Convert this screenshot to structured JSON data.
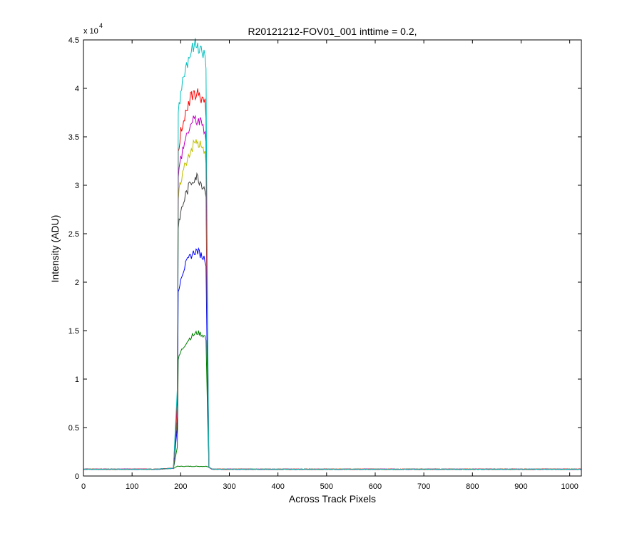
{
  "chart_data": {
    "type": "line",
    "title": "R20121212-FOV01_001 inttime = 0.2,",
    "xlabel": "Across Track Pixels",
    "ylabel": "Intensity (ADU)",
    "y_multiplier": "x 10",
    "y_multiplier_exponent": "4",
    "xlim": [
      0,
      1024
    ],
    "ylim": [
      0,
      45000
    ],
    "xticks": [
      0,
      100,
      200,
      300,
      400,
      500,
      600,
      700,
      800,
      900,
      1000
    ],
    "xtick_labels": [
      "0",
      "100",
      "200",
      "300",
      "400",
      "500",
      "600",
      "700",
      "800",
      "900",
      "1000"
    ],
    "yticks": [
      0,
      5000,
      10000,
      15000,
      20000,
      25000,
      30000,
      35000,
      40000,
      45000
    ],
    "ytick_labels": [
      "0",
      "0.5",
      "1",
      "1.5",
      "2",
      "2.5",
      "3",
      "3.5",
      "4",
      "4.5"
    ],
    "grid": false,
    "legend": "none",
    "baseline": 700,
    "x": [
      0,
      50,
      100,
      150,
      185,
      193,
      195,
      200,
      210,
      220,
      230,
      235,
      240,
      250,
      252,
      255,
      258,
      265,
      300,
      400,
      500,
      600,
      700,
      800,
      900,
      1024
    ],
    "series": [
      {
        "color": "#008000",
        "values": [
          700,
          700,
          700,
          700,
          800,
          1000,
          1000,
          1000,
          1000,
          1000,
          1000,
          1000,
          1000,
          1000,
          1000,
          1000,
          900,
          700,
          700,
          700,
          700,
          700,
          700,
          700,
          700,
          700
        ]
      },
      {
        "color": "#008000",
        "values": [
          700,
          700,
          700,
          700,
          800,
          3000,
          12000,
          12800,
          13700,
          14300,
          14700,
          14800,
          14700,
          14400,
          14000,
          7000,
          900,
          700,
          700,
          700,
          700,
          700,
          700,
          700,
          700,
          700
        ]
      },
      {
        "color": "#0000ff",
        "values": [
          700,
          700,
          700,
          700,
          800,
          5000,
          19000,
          20500,
          21800,
          22700,
          23200,
          23200,
          22900,
          22400,
          21700,
          10000,
          900,
          700,
          700,
          700,
          700,
          700,
          700,
          700,
          700,
          700
        ]
      },
      {
        "color": "#3f3f3f",
        "values": [
          700,
          700,
          700,
          700,
          800,
          6000,
          25500,
          27200,
          29000,
          30200,
          30900,
          30800,
          30400,
          29700,
          28800,
          13000,
          900,
          700,
          700,
          700,
          700,
          700,
          700,
          700,
          700,
          700
        ]
      },
      {
        "color": "#bfbf00",
        "values": [
          700,
          700,
          700,
          700,
          800,
          7000,
          28500,
          30500,
          32300,
          33600,
          34400,
          34400,
          34100,
          33200,
          32200,
          14500,
          900,
          700,
          700,
          700,
          700,
          700,
          700,
          700,
          700,
          700
        ]
      },
      {
        "color": "#bf00bf",
        "values": [
          700,
          700,
          700,
          700,
          800,
          7500,
          30800,
          32800,
          34800,
          36200,
          36800,
          36700,
          36400,
          35600,
          34500,
          15500,
          900,
          700,
          700,
          700,
          700,
          700,
          700,
          700,
          700,
          700
        ]
      },
      {
        "color": "#ff0000",
        "values": [
          700,
          700,
          700,
          700,
          800,
          8000,
          33500,
          35500,
          37600,
          38900,
          39500,
          39400,
          39200,
          38500,
          37000,
          17000,
          900,
          700,
          700,
          700,
          700,
          700,
          700,
          700,
          700,
          700
        ]
      },
      {
        "color": "#00bfbf",
        "values": [
          700,
          700,
          700,
          700,
          800,
          9000,
          37500,
          39800,
          42200,
          43700,
          44500,
          44400,
          44100,
          43200,
          42000,
          19000,
          900,
          700,
          700,
          700,
          700,
          700,
          700,
          700,
          700,
          700
        ]
      }
    ]
  }
}
